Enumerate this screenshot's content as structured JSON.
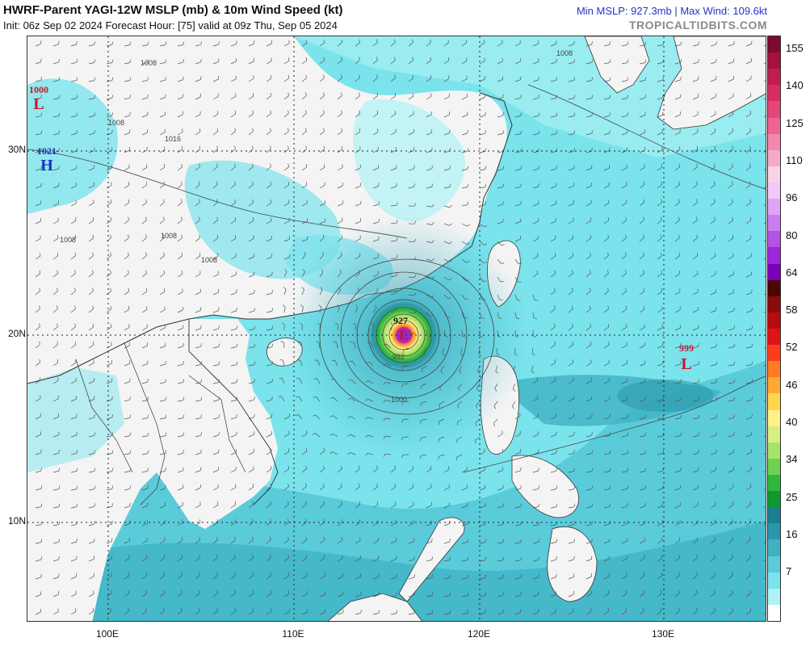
{
  "header": {
    "title": "HWRF-Parent YAGI-12W MSLP (mb) & 10m Wind Speed (kt)",
    "subtitle": "Init: 06z Sep 02 2024   Forecast Hour: [75]   valid at 09z Thu, Sep 05 2024",
    "stats": "Min MSLP: 927.3mb  |  Max Wind: 109.6kt",
    "brand": "TROPICALTIDBITS.COM"
  },
  "axes": {
    "lat_labels": [
      "30N",
      "20N",
      "10N"
    ],
    "lon_labels": [
      "100E",
      "110E",
      "120E",
      "130E"
    ]
  },
  "pressure_centers": [
    {
      "value": "1000",
      "symbol": "L",
      "color": "#c0182e"
    },
    {
      "value": "1021",
      "symbol": "H",
      "color": "#1a2fc0"
    },
    {
      "value": "927",
      "symbol": "L",
      "color": "#c0182e"
    },
    {
      "value": "999",
      "symbol": "L",
      "color": "#c0182e"
    }
  ],
  "isobar_labels": [
    "1008",
    "1008",
    "1008",
    "1008",
    "1008",
    "1008",
    "1000",
    "992",
    "1016"
  ],
  "colorbar": {
    "ticks": [
      "155",
      "140",
      "125",
      "110",
      "96",
      "80",
      "64",
      "58",
      "52",
      "46",
      "40",
      "34",
      "25",
      "16",
      "7"
    ],
    "colors": [
      "#ffffff",
      "#aef2f4",
      "#7ae3ec",
      "#5acbd9",
      "#3fb1c3",
      "#2a97ab",
      "#1c7d93",
      "#0f9a30",
      "#2fb83c",
      "#6fd14f",
      "#a7e36a",
      "#d7ef86",
      "#fff18a",
      "#ffd44f",
      "#ffa833",
      "#ff7a22",
      "#ff3c1e",
      "#e01218",
      "#b80b10",
      "#8b0a0a",
      "#4b0505",
      "#7a00b8",
      "#9a28d6",
      "#b552e6",
      "#cc7df0",
      "#dfa5f5",
      "#f0c9f8",
      "#f8d3e8",
      "#f5aac9",
      "#f288ad",
      "#ec6691",
      "#e24777",
      "#d42f5f",
      "#c11d4c",
      "#a3123c",
      "#7e0a2d"
    ]
  }
}
